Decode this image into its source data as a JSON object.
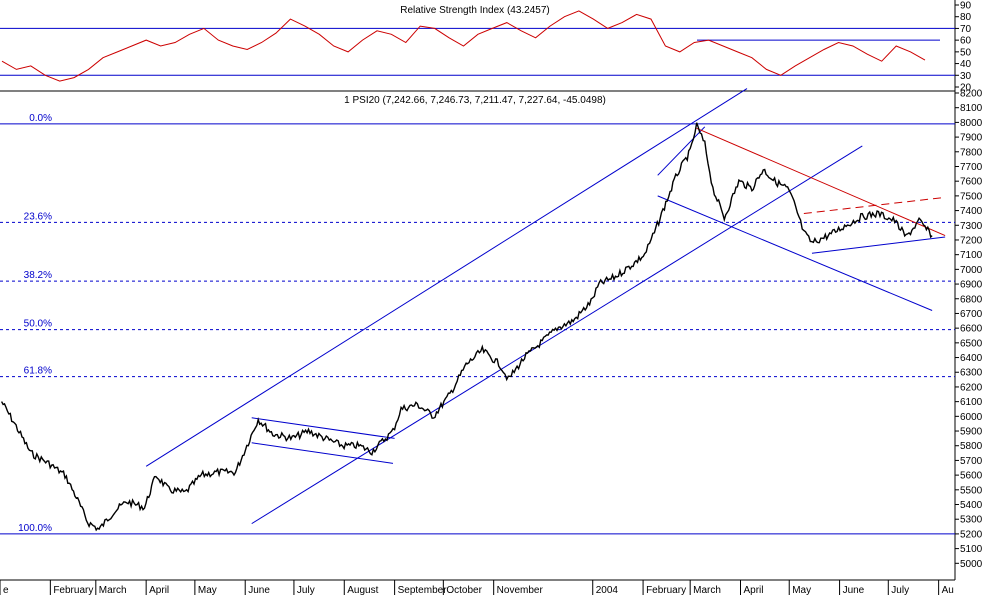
{
  "chart_data": {
    "type": "line",
    "colors": {
      "price": "#000000",
      "rsi": "#cc0000",
      "trend_blue": "#0000cc",
      "trend_red": "#cc0000",
      "grid": "#000099"
    },
    "rsi": {
      "title": "Relative Strength Index (43.2457)",
      "ylim": [
        20,
        90
      ],
      "ticks": [
        90,
        80,
        70,
        60,
        50,
        40,
        30,
        20
      ],
      "reference_lines": [
        70,
        30
      ],
      "series": [
        42,
        35,
        38,
        30,
        25,
        28,
        35,
        45,
        50,
        55,
        60,
        55,
        58,
        65,
        70,
        60,
        55,
        52,
        58,
        66,
        78,
        72,
        65,
        55,
        50,
        60,
        68,
        65,
        58,
        72,
        70,
        62,
        55,
        65,
        70,
        75,
        68,
        62,
        72,
        80,
        85,
        78,
        70,
        75,
        82,
        78,
        55,
        50,
        58,
        60,
        55,
        50,
        45,
        35,
        30,
        38,
        45,
        52,
        58,
        55,
        48,
        42,
        55,
        50,
        43
      ]
    },
    "price": {
      "title": "1 PSI20 (7,242.66, 7,246.73, 7,211.47, 7,227.64, -45.0498)",
      "ylim": [
        4900,
        8200
      ],
      "ticks": [
        8200,
        8100,
        8000,
        7900,
        7800,
        7700,
        7600,
        7500,
        7400,
        7300,
        7200,
        7100,
        7000,
        6900,
        6800,
        6700,
        6600,
        6500,
        6400,
        6300,
        6200,
        6100,
        6000,
        5900,
        5800,
        5700,
        5600,
        5500,
        5400,
        5300,
        5200,
        5100,
        5000
      ],
      "series": [
        [
          "2003-01-02",
          6100
        ],
        [
          "2003-01-10",
          5950
        ],
        [
          "2003-01-20",
          5750
        ],
        [
          "2003-01-31",
          5680
        ],
        [
          "2003-02-10",
          5600
        ],
        [
          "2003-02-17",
          5450
        ],
        [
          "2003-02-24",
          5280
        ],
        [
          "2003-03-03",
          5230
        ],
        [
          "2003-03-12",
          5350
        ],
        [
          "2003-03-20",
          5420
        ],
        [
          "2003-03-31",
          5380
        ],
        [
          "2003-04-07",
          5600
        ],
        [
          "2003-04-15",
          5500
        ],
        [
          "2003-04-25",
          5480
        ],
        [
          "2003-05-05",
          5600
        ],
        [
          "2003-05-15",
          5620
        ],
        [
          "2003-05-26",
          5620
        ],
        [
          "2003-06-02",
          5800
        ],
        [
          "2003-06-09",
          5980
        ],
        [
          "2003-06-18",
          5880
        ],
        [
          "2003-06-30",
          5850
        ],
        [
          "2003-07-10",
          5900
        ],
        [
          "2003-07-20",
          5850
        ],
        [
          "2003-07-31",
          5800
        ],
        [
          "2003-08-10",
          5800
        ],
        [
          "2003-08-18",
          5760
        ],
        [
          "2003-08-31",
          5900
        ],
        [
          "2003-09-05",
          6050
        ],
        [
          "2003-09-15",
          6080
        ],
        [
          "2003-09-25",
          6000
        ],
        [
          "2003-10-05",
          6150
        ],
        [
          "2003-10-15",
          6350
        ],
        [
          "2003-10-25",
          6450
        ],
        [
          "2003-11-05",
          6350
        ],
        [
          "2003-11-10",
          6250
        ],
        [
          "2003-11-20",
          6400
        ],
        [
          "2003-11-30",
          6500
        ],
        [
          "2003-12-10",
          6600
        ],
        [
          "2003-12-20",
          6650
        ],
        [
          "2003-12-31",
          6780
        ],
        [
          "2004-01-05",
          6900
        ],
        [
          "2004-01-15",
          6950
        ],
        [
          "2004-01-25",
          7030
        ],
        [
          "2004-02-02",
          7100
        ],
        [
          "2004-02-08",
          7250
        ],
        [
          "2004-02-15",
          7450
        ],
        [
          "2004-02-22",
          7650
        ],
        [
          "2004-03-01",
          7800
        ],
        [
          "2004-03-05",
          7980
        ],
        [
          "2004-03-10",
          7850
        ],
        [
          "2004-03-15",
          7550
        ],
        [
          "2004-03-22",
          7350
        ],
        [
          "2004-03-31",
          7600
        ],
        [
          "2004-04-08",
          7550
        ],
        [
          "2004-04-15",
          7680
        ],
        [
          "2004-04-22",
          7600
        ],
        [
          "2004-04-30",
          7550
        ],
        [
          "2004-05-04",
          7450
        ],
        [
          "2004-05-10",
          7250
        ],
        [
          "2004-05-15",
          7180
        ],
        [
          "2004-05-25",
          7230
        ],
        [
          "2004-06-05",
          7300
        ],
        [
          "2004-06-15",
          7360
        ],
        [
          "2004-06-25",
          7380
        ],
        [
          "2004-07-05",
          7330
        ],
        [
          "2004-07-12",
          7220
        ],
        [
          "2004-07-20",
          7330
        ],
        [
          "2004-07-28",
          7230
        ]
      ]
    },
    "fibonacci": [
      {
        "label": "0.0%",
        "value": 7990
      },
      {
        "label": "23.6%",
        "value": 7320
      },
      {
        "label": "38.2%",
        "value": 6920
      },
      {
        "label": "50.0%",
        "value": 6590
      },
      {
        "label": "61.8%",
        "value": 6270
      },
      {
        "label": "100.0%",
        "value": 5200
      }
    ],
    "x_labels": [
      "e",
      "February",
      "March",
      "April",
      "May",
      "June",
      "July",
      "August",
      "September",
      "October",
      "November",
      "2004",
      "February",
      "March",
      "April",
      "May",
      "June",
      "July",
      "Au"
    ],
    "trendlines": [
      {
        "color": "blue",
        "style": "solid",
        "from": [
          "2003-04-01",
          5660
        ],
        "to": [
          "2004-04-05",
          8230
        ]
      },
      {
        "color": "blue",
        "style": "solid",
        "from": [
          "2003-06-05",
          5270
        ],
        "to": [
          "2004-06-15",
          7840
        ]
      },
      {
        "color": "blue",
        "style": "solid",
        "from": [
          "2003-06-05",
          5990
        ],
        "to": [
          "2003-09-01",
          5850
        ]
      },
      {
        "color": "blue",
        "style": "solid",
        "from": [
          "2003-06-05",
          5820
        ],
        "to": [
          "2003-08-31",
          5680
        ]
      },
      {
        "color": "blue",
        "style": "solid",
        "from": [
          "2004-02-10",
          7500
        ],
        "to": [
          "2004-07-28",
          6720
        ]
      },
      {
        "color": "blue",
        "style": "solid",
        "from": [
          "2004-02-10",
          7640
        ],
        "to": [
          "2004-03-10",
          7970
        ]
      },
      {
        "color": "blue",
        "style": "solid",
        "from": [
          "2004-05-15",
          7110
        ],
        "to": [
          "2004-08-05",
          7220
        ]
      },
      {
        "color": "red",
        "style": "solid",
        "from": [
          "2004-03-05",
          7960
        ],
        "to": [
          "2004-08-05",
          7230
        ]
      },
      {
        "color": "red",
        "style": "dashed",
        "from": [
          "2004-05-10",
          7380
        ],
        "to": [
          "2004-08-05",
          7490
        ]
      }
    ]
  }
}
